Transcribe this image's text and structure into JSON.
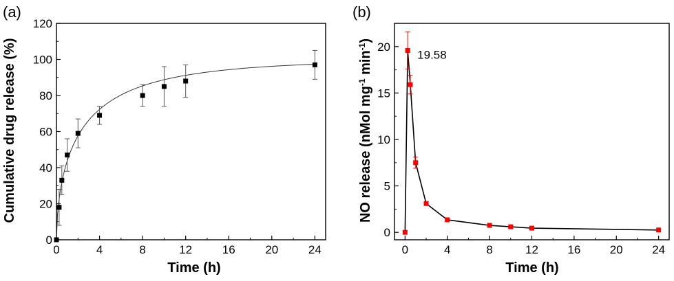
{
  "chart_data": [
    {
      "type": "scatter",
      "panel_label": "(a)",
      "xlabel": "Time  (h)",
      "ylabel": "Cumulative drug release  (%)",
      "xlim": [
        0,
        25
      ],
      "ylim": [
        0,
        120
      ],
      "xticks": [
        0,
        4,
        8,
        12,
        16,
        20,
        24
      ],
      "yticks": [
        0,
        20,
        40,
        60,
        80,
        100,
        120
      ],
      "grid": false,
      "color": "#000000",
      "fit_curve": true,
      "series": [
        {
          "x": [
            0,
            0.25,
            0.5,
            1,
            2,
            4,
            8,
            10,
            12,
            24
          ],
          "y": [
            0,
            18,
            33,
            47,
            59,
            69,
            80,
            85,
            88,
            97
          ],
          "err": [
            0,
            10,
            8,
            9,
            8,
            5,
            6,
            11,
            9,
            8
          ]
        }
      ]
    },
    {
      "type": "line",
      "panel_label": "(b)",
      "xlabel": "Time  (h)",
      "ylabel": "NO release  (nMol mg",
      "ylabel_sup1": "-1",
      "ylabel_mid": " min",
      "ylabel_sup2": "-1",
      "ylabel_end": ")",
      "xlim": [
        -1,
        25
      ],
      "ylim": [
        -0.8,
        22.5
      ],
      "xticks": [
        0,
        4,
        8,
        12,
        16,
        20,
        24
      ],
      "yticks": [
        0,
        5,
        10,
        15,
        20
      ],
      "grid": false,
      "color": "#ff0000",
      "line_color": "#000000",
      "annotation": "19.58",
      "series": [
        {
          "x": [
            0,
            0.25,
            0.5,
            1,
            2,
            4,
            8,
            10,
            12,
            24
          ],
          "y": [
            0,
            19.58,
            15.9,
            7.5,
            3.1,
            1.35,
            0.75,
            0.6,
            0.45,
            0.25
          ],
          "err": [
            0,
            2.0,
            1.0,
            0.6,
            0.2,
            0.15,
            0.1,
            0.1,
            0.1,
            0.1
          ]
        }
      ]
    }
  ]
}
